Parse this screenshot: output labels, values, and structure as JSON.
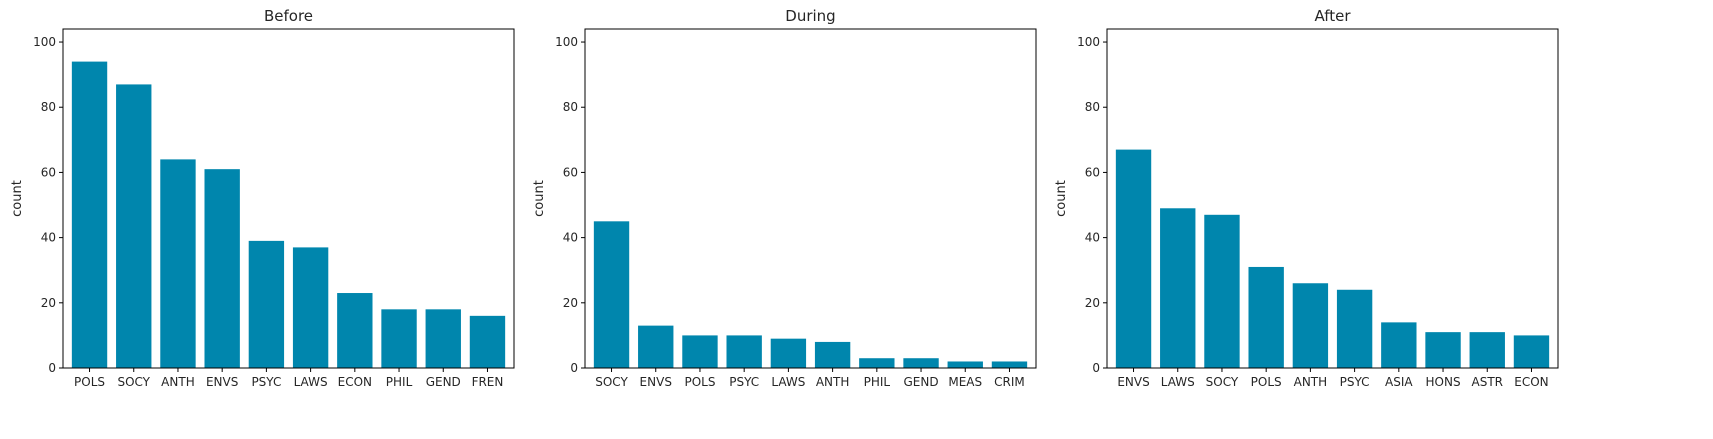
{
  "chart_data": [
    {
      "type": "bar",
      "title": "Before",
      "xlabel": "",
      "ylabel": "count",
      "ylim": [
        0,
        104
      ],
      "yticks": [
        0,
        20,
        40,
        60,
        80,
        100
      ],
      "categories": [
        "POLS",
        "SOCY",
        "ANTH",
        "ENVS",
        "PSYC",
        "LAWS",
        "ECON",
        "PHIL",
        "GEND",
        "FREN"
      ],
      "values": [
        94,
        87,
        64,
        61,
        39,
        37,
        23,
        18,
        18,
        16
      ],
      "color": "#0086AD",
      "grid": false
    },
    {
      "type": "bar",
      "title": "During",
      "xlabel": "",
      "ylabel": "count",
      "ylim": [
        0,
        104
      ],
      "yticks": [
        0,
        20,
        40,
        60,
        80,
        100
      ],
      "categories": [
        "SOCY",
        "ENVS",
        "POLS",
        "PSYC",
        "LAWS",
        "ANTH",
        "PHIL",
        "GEND",
        "MEAS",
        "CRIM"
      ],
      "values": [
        45,
        13,
        10,
        10,
        9,
        8,
        3,
        3,
        2,
        2
      ],
      "color": "#0086AD",
      "grid": false
    },
    {
      "type": "bar",
      "title": "After",
      "xlabel": "",
      "ylabel": "count",
      "ylim": [
        0,
        104
      ],
      "yticks": [
        0,
        20,
        40,
        60,
        80,
        100
      ],
      "categories": [
        "ENVS",
        "LAWS",
        "SOCY",
        "POLS",
        "ANTH",
        "PSYC",
        "ASIA",
        "HONS",
        "ASTR",
        "ECON"
      ],
      "values": [
        67,
        49,
        47,
        31,
        26,
        24,
        14,
        11,
        11,
        10
      ],
      "color": "#0086AD",
      "grid": false
    }
  ]
}
